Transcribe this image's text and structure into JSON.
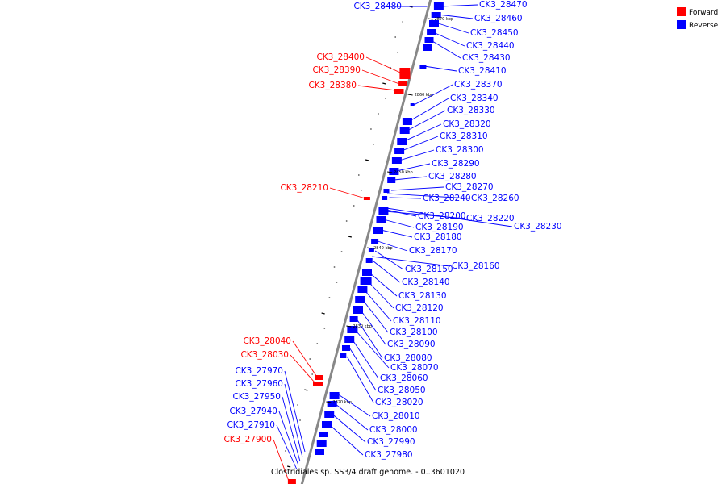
{
  "caption": "Clostridiales sp. SS3/4 draft genome. - 0..3601020",
  "legend": [
    {
      "label": "Forward",
      "color": "#ff0000"
    },
    {
      "label": "Reverse",
      "color": "#0000ff"
    }
  ],
  "colors": {
    "forward": "#ff0000",
    "reverse": "#0000ff",
    "backbone": "#888888"
  },
  "ticks": [
    "2870 kbp",
    "2860 kbp",
    "2850 kbp",
    "2840 kbp",
    "2830 kbp",
    "2820 kbp"
  ],
  "forward_labels": [
    "CK3_28400",
    "CK3_28390",
    "CK3_28380",
    "CK3_28210",
    "CK3_28040",
    "CK3_28030",
    "CK3_27900"
  ],
  "reverse_labels": [
    "CK3_28480",
    "CK3_28470",
    "CK3_28460",
    "CK3_28450",
    "CK3_28440",
    "CK3_28430",
    "CK3_28410",
    "CK3_28370",
    "CK3_28340",
    "CK3_28330",
    "CK3_28320",
    "CK3_28310",
    "CK3_28300",
    "CK3_28290",
    "CK3_28280",
    "CK3_28270",
    "CK3_28240",
    "CK3_28260",
    "CK3_28200",
    "CK3_28220",
    "CK3_28230",
    "CK3_28190",
    "CK3_28180",
    "CK3_28170",
    "CK3_28160",
    "CK3_28150",
    "CK3_28140",
    "CK3_28130",
    "CK3_28120",
    "CK3_28110",
    "CK3_28100",
    "CK3_28090",
    "CK3_28080",
    "CK3_28070",
    "CK3_28060",
    "CK3_28050",
    "CK3_28020",
    "CK3_28010",
    "CK3_28000",
    "CK3_27990",
    "CK3_27980",
    "CK3_27970",
    "CK3_27960",
    "CK3_27950",
    "CK3_27940",
    "CK3_27910"
  ]
}
